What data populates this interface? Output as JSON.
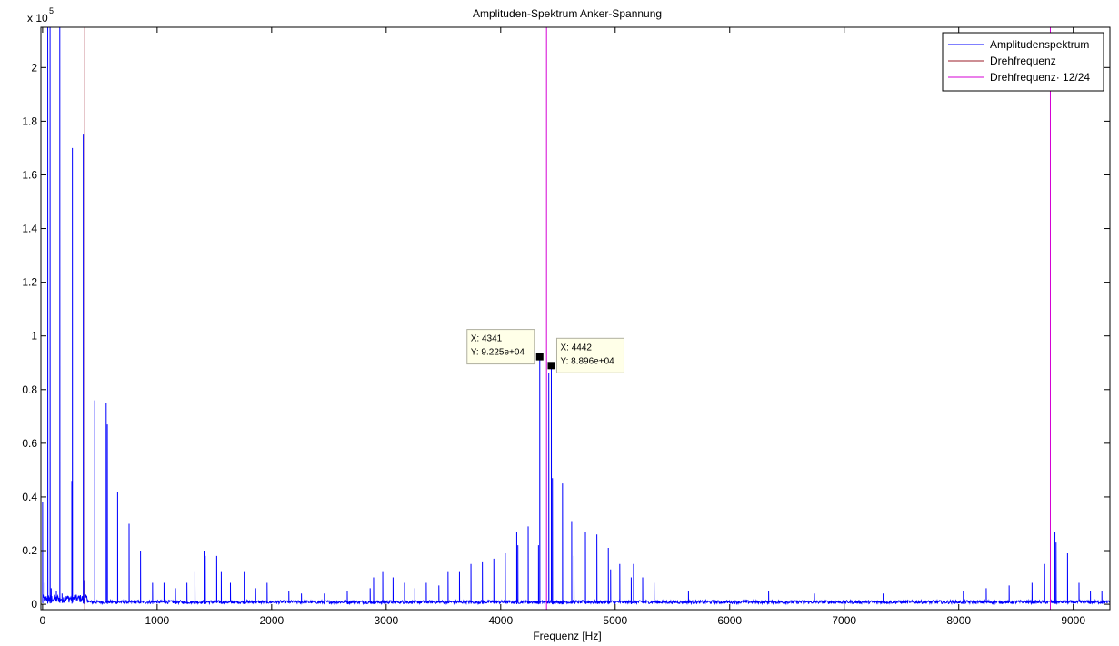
{
  "chart_data": {
    "type": "line",
    "title": "Amplituden-Spektrum Anker-Spannung",
    "xlabel": "Frequenz [Hz]",
    "ylabel": "",
    "y_exponent_label": "x 10",
    "y_exponent": "5",
    "xlim": [
      -15,
      9320
    ],
    "ylim": [
      -0.02,
      2.15
    ],
    "y_scale_note": "values in units of 10^5",
    "xticks": [
      0,
      1000,
      2000,
      3000,
      4000,
      5000,
      6000,
      7000,
      8000,
      9000
    ],
    "xtick_labels": [
      "0",
      "1000",
      "2000",
      "3000",
      "4000",
      "5000",
      "6000",
      "7000",
      "8000",
      "9000"
    ],
    "yticks": [
      0,
      0.2,
      0.4,
      0.6,
      0.8,
      1,
      1.2,
      1.4,
      1.6,
      1.8,
      2
    ],
    "ytick_labels": [
      "0",
      "0.2",
      "0.4",
      "0.6",
      "0.8",
      "1",
      "1.2",
      "1.4",
      "1.6",
      "1.8",
      "2"
    ],
    "grid": false,
    "legend_placement": "top-right",
    "noise_floor": 0.012,
    "series": [
      {
        "name": "Amplitudenspektrum",
        "color": "#0000ff",
        "kind": "spectrum",
        "peaks": [
          [
            0,
            0.38
          ],
          [
            20,
            0.08
          ],
          [
            45,
            2.15
          ],
          [
            65,
            2.15
          ],
          [
            75,
            0.06
          ],
          [
            120,
            0.05
          ],
          [
            150,
            2.15
          ],
          [
            170,
            0.04
          ],
          [
            255,
            0.46
          ],
          [
            260,
            1.7
          ],
          [
            355,
            1.75
          ],
          [
            365,
            0.09
          ],
          [
            455,
            0.76
          ],
          [
            555,
            0.75
          ],
          [
            565,
            0.67
          ],
          [
            655,
            0.42
          ],
          [
            755,
            0.3
          ],
          [
            855,
            0.2
          ],
          [
            960,
            0.08
          ],
          [
            1060,
            0.08
          ],
          [
            1160,
            0.06
          ],
          [
            1260,
            0.08
          ],
          [
            1330,
            0.12
          ],
          [
            1410,
            0.2
          ],
          [
            1420,
            0.18
          ],
          [
            1520,
            0.18
          ],
          [
            1560,
            0.12
          ],
          [
            1640,
            0.08
          ],
          [
            1760,
            0.12
          ],
          [
            1860,
            0.06
          ],
          [
            1960,
            0.08
          ],
          [
            2150,
            0.05
          ],
          [
            2260,
            0.04
          ],
          [
            2460,
            0.04
          ],
          [
            2660,
            0.05
          ],
          [
            2860,
            0.06
          ],
          [
            2890,
            0.1
          ],
          [
            2970,
            0.12
          ],
          [
            3060,
            0.1
          ],
          [
            3160,
            0.08
          ],
          [
            3250,
            0.06
          ],
          [
            3350,
            0.08
          ],
          [
            3460,
            0.07
          ],
          [
            3540,
            0.12
          ],
          [
            3640,
            0.12
          ],
          [
            3740,
            0.15
          ],
          [
            3840,
            0.16
          ],
          [
            3940,
            0.17
          ],
          [
            4040,
            0.19
          ],
          [
            4140,
            0.27
          ],
          [
            4150,
            0.22
          ],
          [
            4240,
            0.29
          ],
          [
            4330,
            0.22
          ],
          [
            4341,
            0.9225
          ],
          [
            4420,
            0.86
          ],
          [
            4442,
            0.8896
          ],
          [
            4452,
            0.47
          ],
          [
            4540,
            0.45
          ],
          [
            4620,
            0.31
          ],
          [
            4640,
            0.18
          ],
          [
            4740,
            0.27
          ],
          [
            4840,
            0.26
          ],
          [
            4940,
            0.21
          ],
          [
            4960,
            0.13
          ],
          [
            5040,
            0.15
          ],
          [
            5140,
            0.1
          ],
          [
            5160,
            0.15
          ],
          [
            5240,
            0.1
          ],
          [
            5340,
            0.08
          ],
          [
            5640,
            0.05
          ],
          [
            6340,
            0.05
          ],
          [
            6740,
            0.04
          ],
          [
            7340,
            0.04
          ],
          [
            8040,
            0.05
          ],
          [
            8240,
            0.06
          ],
          [
            8440,
            0.07
          ],
          [
            8640,
            0.08
          ],
          [
            8750,
            0.15
          ],
          [
            8840,
            0.27
          ],
          [
            8850,
            0.23
          ],
          [
            8950,
            0.19
          ],
          [
            9050,
            0.08
          ],
          [
            9150,
            0.05
          ],
          [
            9250,
            0.05
          ]
        ]
      },
      {
        "name": "Drehfrequenz",
        "color": "#9b1c2a",
        "kind": "vline",
        "x": 368
      },
      {
        "name": "Drehfrequenz· 12/24",
        "color": "#d400d4",
        "kind": "vline",
        "x": [
          4400,
          8800
        ]
      }
    ],
    "annotations": [
      {
        "x_label": "X: 4341",
        "y_label": "Y: 9.225e+04",
        "x": 4341,
        "y": 0.9225,
        "side": "left"
      },
      {
        "x_label": "X: 4442",
        "y_label": "Y: 8.896e+04",
        "x": 4442,
        "y": 0.8896,
        "side": "right"
      }
    ]
  }
}
